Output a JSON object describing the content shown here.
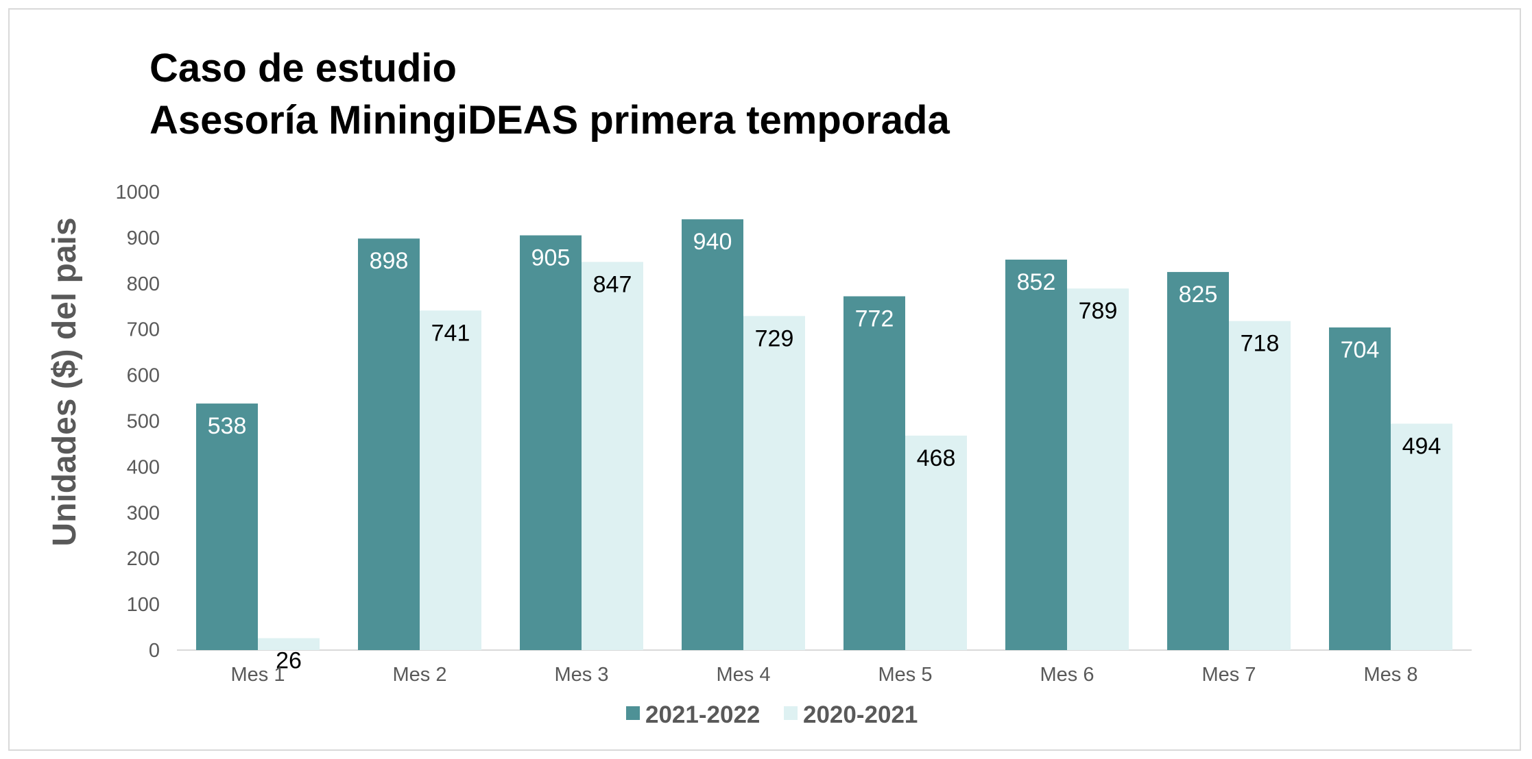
{
  "chart_data": {
    "type": "bar",
    "title": "Caso de estudio",
    "subtitle": "Asesoría MiningiDEAS primera temporada",
    "ylabel": "Unidades ($) del pais",
    "xlabel": "",
    "ylim": [
      0,
      1000
    ],
    "yticks": [
      0,
      100,
      200,
      300,
      400,
      500,
      600,
      700,
      800,
      900,
      1000
    ],
    "categories": [
      "Mes 1",
      "Mes 2",
      "Mes 3",
      "Mes 4",
      "Mes 5",
      "Mes 6",
      "Mes 7",
      "Mes 8"
    ],
    "series": [
      {
        "name": "2021-2022",
        "color": "#4e9196",
        "label_color": "#ffffff",
        "values": [
          538,
          898,
          905,
          940,
          772,
          852,
          825,
          704
        ]
      },
      {
        "name": "2020-2021",
        "color": "#def1f2",
        "label_color": "#000000",
        "values": [
          26,
          741,
          847,
          729,
          468,
          789,
          718,
          494
        ]
      }
    ],
    "grid": false,
    "legend": "bottom-center",
    "axis_color": "#d9d9d9"
  }
}
